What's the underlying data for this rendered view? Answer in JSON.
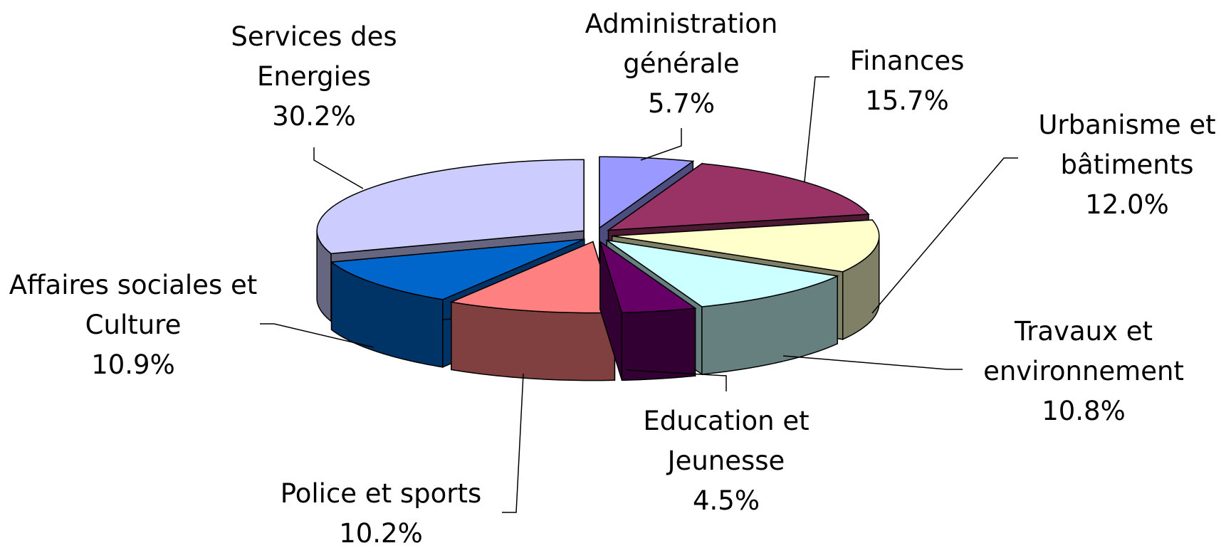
{
  "chart_data": {
    "type": "pie3d",
    "categories": [
      "Administration générale",
      "Finances",
      "Urbanisme et bâtiments",
      "Travaux et environnement",
      "Education et Jeunesse",
      "Police et sports",
      "Affaires sociales et Culture",
      "Services des Energies"
    ],
    "values": [
      5.7,
      15.7,
      12.0,
      10.8,
      4.5,
      10.2,
      10.9,
      30.2
    ],
    "value_labels": [
      "5.7%",
      "15.7%",
      "12.0%",
      "10.8%",
      "4.5%",
      "10.2%",
      "10.9%",
      "30.2%"
    ],
    "colors": [
      "#9999ff",
      "#993366",
      "#ffffcc",
      "#ccffff",
      "#660066",
      "#ff8080",
      "#0066cc",
      "#ccccff"
    ]
  }
}
